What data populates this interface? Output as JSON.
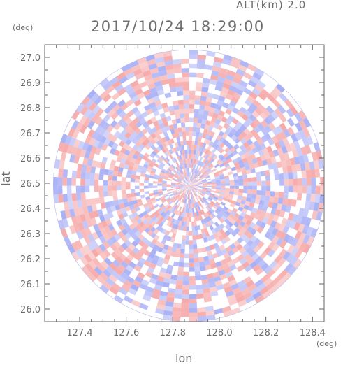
{
  "header": {
    "alt_label": "ALT(km) 2.0",
    "timestamp": "2017/10/24 18:29:00",
    "y_unit": "(deg)",
    "x_unit": "(deg)"
  },
  "chart_data": {
    "type": "heatmap",
    "title": "2017/10/24 18:29:00",
    "subtitle": "ALT(km) 2.0",
    "xlabel": "lon",
    "ylabel": "lat",
    "x_unit": "(deg)",
    "y_unit": "(deg)",
    "xlim": [
      127.25,
      128.45
    ],
    "ylim": [
      25.95,
      27.05
    ],
    "xticks": [
      127.4,
      127.6,
      127.8,
      128.0,
      128.2,
      128.4
    ],
    "yticks": [
      26.0,
      26.1,
      26.2,
      26.3,
      26.4,
      26.5,
      26.6,
      26.7,
      26.8,
      26.9,
      27.0
    ],
    "x_tick_labels": [
      "127.4",
      "127.6",
      "127.8",
      "128.0",
      "128.2",
      "128.4"
    ],
    "y_tick_labels": [
      "26.0",
      "26.1",
      "26.2",
      "26.3",
      "26.4",
      "26.5",
      "26.6",
      "26.7",
      "26.8",
      "26.9",
      "27.0"
    ],
    "radar_center": {
      "lon": 127.87,
      "lat": 26.49
    },
    "radar_radius_deg_lat": 0.54,
    "colors": {
      "positive": "#f5a0a0",
      "negative": "#a0a8f5",
      "neutral": "#ffffff"
    },
    "grid": false
  }
}
